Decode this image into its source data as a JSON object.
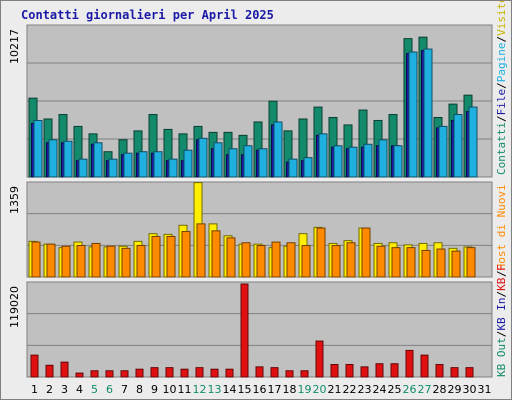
{
  "title": "Contatti giornalieri per April 2025",
  "legend": {
    "panel1": [
      {
        "text": "Contatti",
        "color": "#138a6b"
      },
      {
        "text": "/",
        "color": "#000000"
      },
      {
        "text": "File",
        "color": "#1a1aa6"
      },
      {
        "text": "/",
        "color": "#000000"
      },
      {
        "text": "Pagine",
        "color": "#1fb0e0"
      },
      {
        "text": "/",
        "color": "#000000"
      },
      {
        "text": "Visite",
        "color": "#c8b400"
      }
    ],
    "panel2": [
      {
        "text": "/",
        "color": "#000000"
      },
      {
        "text": "Host",
        "color": "#ff8a00"
      },
      {
        "text": " di ",
        "color": "#ff8a00"
      },
      {
        "text": "Nuovi",
        "color": "#ff8a00"
      }
    ],
    "panel3": [
      {
        "text": "KB Out",
        "color": "#138a6b"
      },
      {
        "text": "/",
        "color": "#000000"
      },
      {
        "text": "KB In",
        "color": "#1a1aa6"
      },
      {
        "text": "/",
        "color": "#000000"
      },
      {
        "text": "KB F",
        "color": "#e01010"
      }
    ]
  },
  "colors": {
    "hits": "#138a6b",
    "files": "#1a1aa6",
    "pages": "#1fb0e0",
    "visits": "#ffee00",
    "sites": "#ff8a00",
    "kbytes": "#e01010",
    "weekend_label": "#138a6b",
    "weekday_label": "#000000"
  },
  "chart_data": [
    {
      "type": "bar",
      "name": "daily-hits-files-pages",
      "ymax_label": "10217",
      "ylim": [
        0,
        10217
      ],
      "categories": [
        "1",
        "2",
        "3",
        "4",
        "5",
        "6",
        "7",
        "8",
        "9",
        "10",
        "11",
        "12",
        "13",
        "14",
        "15",
        "16",
        "17",
        "18",
        "19",
        "20",
        "21",
        "22",
        "23",
        "24",
        "25",
        "26",
        "27",
        "28",
        "29",
        "30",
        "31"
      ],
      "weekend": [
        5,
        6,
        12,
        13,
        19,
        20,
        26,
        27
      ],
      "series": [
        {
          "name": "Contatti",
          "values": [
            5300,
            3900,
            4200,
            3400,
            2900,
            1700,
            2500,
            3100,
            4200,
            3200,
            2900,
            3400,
            3000,
            3000,
            2800,
            3700,
            5100,
            3100,
            3900,
            4700,
            4000,
            3500,
            4500,
            3800,
            4200,
            9300,
            9400,
            4000,
            4900,
            5500,
            0
          ]
        },
        {
          "name": "File",
          "values": [
            3600,
            2300,
            2300,
            1100,
            2200,
            1100,
            1500,
            1600,
            1600,
            1100,
            1100,
            2500,
            1900,
            1500,
            1500,
            1800,
            3500,
            1000,
            1100,
            2800,
            2000,
            1900,
            2000,
            2100,
            2100,
            8300,
            8500,
            3300,
            3800,
            4400,
            0
          ]
        },
        {
          "name": "Pagine",
          "values": [
            3800,
            2500,
            2400,
            1200,
            2300,
            1200,
            1600,
            1700,
            1700,
            1200,
            1800,
            2600,
            2300,
            1900,
            2100,
            1900,
            3700,
            1200,
            1300,
            2900,
            2100,
            2000,
            2200,
            2500,
            2100,
            8400,
            8600,
            3400,
            4200,
            4700,
            0
          ]
        }
      ]
    },
    {
      "type": "bar",
      "name": "daily-visits-sites",
      "ymax_label": "1359",
      "ylim": [
        0,
        1359
      ],
      "categories": [
        "1",
        "2",
        "3",
        "4",
        "5",
        "6",
        "7",
        "8",
        "9",
        "10",
        "11",
        "12",
        "13",
        "14",
        "15",
        "16",
        "17",
        "18",
        "19",
        "20",
        "21",
        "22",
        "23",
        "24",
        "25",
        "26",
        "27",
        "28",
        "29",
        "30",
        "31"
      ],
      "series": [
        {
          "name": "Visite",
          "values": [
            510,
            470,
            420,
            500,
            430,
            430,
            440,
            510,
            620,
            610,
            740,
            1350,
            760,
            590,
            470,
            470,
            420,
            440,
            620,
            710,
            480,
            520,
            700,
            480,
            490,
            460,
            480,
            490,
            410,
            430,
            0
          ]
        },
        {
          "name": "Host di Nuovi",
          "values": [
            500,
            470,
            440,
            450,
            480,
            440,
            410,
            450,
            580,
            580,
            650,
            760,
            660,
            560,
            490,
            450,
            500,
            490,
            450,
            700,
            450,
            490,
            700,
            440,
            420,
            420,
            380,
            400,
            370,
            420,
            0
          ]
        }
      ]
    },
    {
      "type": "bar",
      "name": "daily-kbytes",
      "ymax_label": "119020",
      "ylim": [
        0,
        119020
      ],
      "categories": [
        "1",
        "2",
        "3",
        "4",
        "5",
        "6",
        "7",
        "8",
        "9",
        "10",
        "11",
        "12",
        "13",
        "14",
        "15",
        "16",
        "17",
        "18",
        "19",
        "20",
        "21",
        "22",
        "23",
        "24",
        "25",
        "26",
        "27",
        "28",
        "29",
        "30",
        "31"
      ],
      "series": [
        {
          "name": "KB F",
          "values": [
            28000,
            15000,
            19000,
            5000,
            8000,
            8000,
            8000,
            10000,
            12000,
            12000,
            10000,
            12000,
            10000,
            10000,
            119020,
            13000,
            12000,
            8000,
            8000,
            46000,
            16000,
            16000,
            13000,
            17000,
            17000,
            34000,
            28000,
            16000,
            12000,
            12000,
            0
          ]
        }
      ]
    }
  ]
}
